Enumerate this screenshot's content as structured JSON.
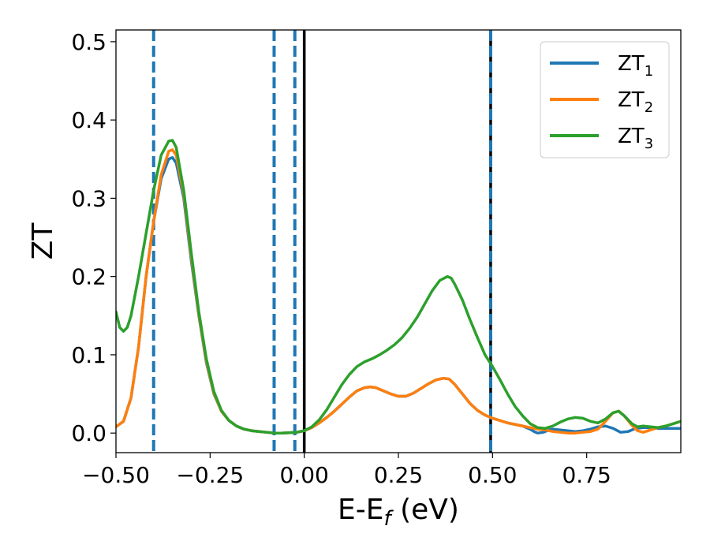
{
  "chart_data": {
    "type": "line",
    "title": "",
    "xlabel_main": "E-E",
    "xlabel_sub": "f",
    "xlabel_unit": " (eV)",
    "ylabel": "ZT",
    "xlim": [
      -0.5,
      1.0
    ],
    "ylim": [
      -0.025,
      0.515
    ],
    "grid": false,
    "legend_placement": "top-right",
    "x_ticks": [
      -0.5,
      -0.25,
      0.0,
      0.25,
      0.5,
      0.75
    ],
    "x_tick_labels": [
      "−0.50",
      "−0.25",
      "0.00",
      "0.25",
      "0.50",
      "0.75"
    ],
    "y_ticks": [
      0.0,
      0.1,
      0.2,
      0.3,
      0.4,
      0.5
    ],
    "y_tick_labels": [
      "0.0",
      "0.1",
      "0.2",
      "0.3",
      "0.4",
      "0.5"
    ],
    "vlines": [
      {
        "x": -0.4,
        "style": "dashed",
        "color": "#1f77b4"
      },
      {
        "x": -0.08,
        "style": "dashed",
        "color": "#1f77b4"
      },
      {
        "x": -0.025,
        "style": "dashed",
        "color": "#1f77b4"
      },
      {
        "x": 0.0,
        "style": "solid",
        "color": "#000000"
      },
      {
        "x": 0.495,
        "style": "solid",
        "color": "#000000"
      },
      {
        "x": 0.495,
        "style": "dashed",
        "color": "#1f77b4"
      }
    ],
    "series": [
      {
        "name": "ZT",
        "sub": "1",
        "color": "#1f77b4",
        "points": [
          [
            -0.5,
            0.008
          ],
          [
            -0.48,
            0.015
          ],
          [
            -0.46,
            0.045
          ],
          [
            -0.44,
            0.11
          ],
          [
            -0.42,
            0.2
          ],
          [
            -0.4,
            0.27
          ],
          [
            -0.38,
            0.325
          ],
          [
            -0.36,
            0.35
          ],
          [
            -0.35,
            0.352
          ],
          [
            -0.34,
            0.345
          ],
          [
            -0.32,
            0.3
          ],
          [
            -0.3,
            0.22
          ],
          [
            -0.28,
            0.15
          ],
          [
            -0.26,
            0.09
          ],
          [
            -0.24,
            0.05
          ],
          [
            -0.22,
            0.028
          ],
          [
            -0.2,
            0.016
          ],
          [
            -0.18,
            0.009
          ],
          [
            -0.16,
            0.005
          ],
          [
            -0.14,
            0.003
          ],
          [
            -0.12,
            0.002
          ],
          [
            -0.1,
            0.001
          ],
          [
            -0.08,
            0.0
          ],
          [
            -0.06,
            0.0
          ],
          [
            -0.04,
            0.0005
          ],
          [
            -0.02,
            0.001
          ],
          [
            0.0,
            0.003
          ],
          [
            0.02,
            0.007
          ],
          [
            0.04,
            0.013
          ],
          [
            0.06,
            0.02
          ],
          [
            0.08,
            0.028
          ],
          [
            0.1,
            0.037
          ],
          [
            0.12,
            0.046
          ],
          [
            0.14,
            0.054
          ],
          [
            0.16,
            0.058
          ],
          [
            0.175,
            0.059
          ],
          [
            0.19,
            0.058
          ],
          [
            0.21,
            0.054
          ],
          [
            0.23,
            0.05
          ],
          [
            0.25,
            0.047
          ],
          [
            0.27,
            0.047
          ],
          [
            0.29,
            0.051
          ],
          [
            0.31,
            0.057
          ],
          [
            0.33,
            0.063
          ],
          [
            0.35,
            0.068
          ],
          [
            0.37,
            0.07
          ],
          [
            0.385,
            0.069
          ],
          [
            0.4,
            0.062
          ],
          [
            0.42,
            0.05
          ],
          [
            0.44,
            0.038
          ],
          [
            0.46,
            0.029
          ],
          [
            0.48,
            0.023
          ],
          [
            0.5,
            0.019
          ],
          [
            0.52,
            0.016
          ],
          [
            0.54,
            0.013
          ],
          [
            0.56,
            0.011
          ],
          [
            0.58,
            0.009
          ],
          [
            0.6,
            0.005
          ],
          [
            0.61,
            0.002
          ],
          [
            0.62,
            0.0
          ],
          [
            0.635,
            0.001
          ],
          [
            0.65,
            0.004
          ],
          [
            0.66,
            0.005
          ],
          [
            0.68,
            0.004
          ],
          [
            0.7,
            0.003
          ],
          [
            0.72,
            0.002
          ],
          [
            0.74,
            0.003
          ],
          [
            0.76,
            0.005
          ],
          [
            0.78,
            0.008
          ],
          [
            0.8,
            0.009
          ],
          [
            0.82,
            0.006
          ],
          [
            0.84,
            0.001
          ],
          [
            0.86,
            0.002
          ],
          [
            0.88,
            0.006
          ],
          [
            0.9,
            0.007
          ],
          [
            0.92,
            0.007
          ],
          [
            0.94,
            0.006
          ],
          [
            0.96,
            0.006
          ],
          [
            0.98,
            0.006
          ],
          [
            1.0,
            0.006
          ]
        ]
      },
      {
        "name": "ZT",
        "sub": "2",
        "color": "#ff7f0e",
        "points": [
          [
            -0.5,
            0.008
          ],
          [
            -0.48,
            0.015
          ],
          [
            -0.46,
            0.045
          ],
          [
            -0.44,
            0.11
          ],
          [
            -0.42,
            0.2
          ],
          [
            -0.4,
            0.27
          ],
          [
            -0.38,
            0.33
          ],
          [
            -0.36,
            0.36
          ],
          [
            -0.35,
            0.362
          ],
          [
            -0.34,
            0.355
          ],
          [
            -0.32,
            0.305
          ],
          [
            -0.3,
            0.225
          ],
          [
            -0.28,
            0.152
          ],
          [
            -0.26,
            0.092
          ],
          [
            -0.24,
            0.051
          ],
          [
            -0.22,
            0.028
          ],
          [
            -0.2,
            0.016
          ],
          [
            -0.18,
            0.009
          ],
          [
            -0.16,
            0.005
          ],
          [
            -0.14,
            0.003
          ],
          [
            -0.12,
            0.002
          ],
          [
            -0.1,
            0.001
          ],
          [
            -0.08,
            0.0
          ],
          [
            -0.06,
            0.0
          ],
          [
            -0.04,
            0.0005
          ],
          [
            -0.02,
            0.001
          ],
          [
            0.0,
            0.003
          ],
          [
            0.02,
            0.007
          ],
          [
            0.04,
            0.013
          ],
          [
            0.06,
            0.02
          ],
          [
            0.08,
            0.028
          ],
          [
            0.1,
            0.037
          ],
          [
            0.12,
            0.046
          ],
          [
            0.14,
            0.054
          ],
          [
            0.16,
            0.058
          ],
          [
            0.175,
            0.059
          ],
          [
            0.19,
            0.058
          ],
          [
            0.21,
            0.054
          ],
          [
            0.23,
            0.05
          ],
          [
            0.25,
            0.047
          ],
          [
            0.27,
            0.047
          ],
          [
            0.29,
            0.051
          ],
          [
            0.31,
            0.057
          ],
          [
            0.33,
            0.063
          ],
          [
            0.35,
            0.068
          ],
          [
            0.37,
            0.07
          ],
          [
            0.385,
            0.069
          ],
          [
            0.4,
            0.062
          ],
          [
            0.42,
            0.05
          ],
          [
            0.44,
            0.038
          ],
          [
            0.46,
            0.029
          ],
          [
            0.48,
            0.023
          ],
          [
            0.5,
            0.019
          ],
          [
            0.52,
            0.016
          ],
          [
            0.54,
            0.013
          ],
          [
            0.56,
            0.011
          ],
          [
            0.58,
            0.009
          ],
          [
            0.6,
            0.007
          ],
          [
            0.62,
            0.005
          ],
          [
            0.64,
            0.004
          ],
          [
            0.66,
            0.002
          ],
          [
            0.68,
            0.001
          ],
          [
            0.7,
            0.0
          ],
          [
            0.72,
            0.0
          ],
          [
            0.74,
            0.001
          ],
          [
            0.76,
            0.002
          ],
          [
            0.78,
            0.005
          ],
          [
            0.8,
            0.015
          ],
          [
            0.82,
            0.026
          ],
          [
            0.835,
            0.028
          ],
          [
            0.85,
            0.022
          ],
          [
            0.87,
            0.01
          ],
          [
            0.885,
            0.003
          ],
          [
            0.9,
            0.001
          ],
          [
            0.92,
            0.004
          ],
          [
            0.94,
            0.007
          ],
          [
            0.96,
            0.009
          ],
          [
            0.98,
            0.012
          ],
          [
            1.0,
            0.015
          ]
        ]
      },
      {
        "name": "ZT",
        "sub": "3",
        "color": "#2ca02c",
        "points": [
          [
            -0.5,
            0.155
          ],
          [
            -0.49,
            0.135
          ],
          [
            -0.48,
            0.13
          ],
          [
            -0.47,
            0.135
          ],
          [
            -0.46,
            0.15
          ],
          [
            -0.44,
            0.2
          ],
          [
            -0.42,
            0.255
          ],
          [
            -0.4,
            0.31
          ],
          [
            -0.38,
            0.355
          ],
          [
            -0.36,
            0.373
          ],
          [
            -0.35,
            0.374
          ],
          [
            -0.34,
            0.365
          ],
          [
            -0.32,
            0.31
          ],
          [
            -0.3,
            0.23
          ],
          [
            -0.28,
            0.155
          ],
          [
            -0.26,
            0.095
          ],
          [
            -0.24,
            0.053
          ],
          [
            -0.22,
            0.029
          ],
          [
            -0.2,
            0.016
          ],
          [
            -0.18,
            0.009
          ],
          [
            -0.16,
            0.005
          ],
          [
            -0.14,
            0.003
          ],
          [
            -0.12,
            0.002
          ],
          [
            -0.1,
            0.001
          ],
          [
            -0.08,
            0.0
          ],
          [
            -0.06,
            0.0
          ],
          [
            -0.04,
            0.0005
          ],
          [
            -0.02,
            0.001
          ],
          [
            0.0,
            0.003
          ],
          [
            0.02,
            0.008
          ],
          [
            0.04,
            0.017
          ],
          [
            0.06,
            0.03
          ],
          [
            0.08,
            0.046
          ],
          [
            0.1,
            0.062
          ],
          [
            0.12,
            0.075
          ],
          [
            0.14,
            0.085
          ],
          [
            0.16,
            0.091
          ],
          [
            0.18,
            0.095
          ],
          [
            0.2,
            0.1
          ],
          [
            0.22,
            0.106
          ],
          [
            0.24,
            0.113
          ],
          [
            0.26,
            0.122
          ],
          [
            0.28,
            0.134
          ],
          [
            0.3,
            0.148
          ],
          [
            0.32,
            0.165
          ],
          [
            0.34,
            0.182
          ],
          [
            0.36,
            0.195
          ],
          [
            0.38,
            0.2
          ],
          [
            0.39,
            0.198
          ],
          [
            0.4,
            0.19
          ],
          [
            0.42,
            0.17
          ],
          [
            0.44,
            0.145
          ],
          [
            0.46,
            0.122
          ],
          [
            0.48,
            0.1
          ],
          [
            0.5,
            0.085
          ],
          [
            0.52,
            0.068
          ],
          [
            0.54,
            0.05
          ],
          [
            0.56,
            0.034
          ],
          [
            0.58,
            0.022
          ],
          [
            0.6,
            0.012
          ],
          [
            0.62,
            0.007
          ],
          [
            0.64,
            0.006
          ],
          [
            0.66,
            0.009
          ],
          [
            0.68,
            0.014
          ],
          [
            0.7,
            0.018
          ],
          [
            0.72,
            0.02
          ],
          [
            0.74,
            0.019
          ],
          [
            0.76,
            0.015
          ],
          [
            0.78,
            0.013
          ],
          [
            0.8,
            0.018
          ],
          [
            0.82,
            0.026
          ],
          [
            0.835,
            0.028
          ],
          [
            0.85,
            0.022
          ],
          [
            0.87,
            0.012
          ],
          [
            0.885,
            0.008
          ],
          [
            0.9,
            0.009
          ],
          [
            0.92,
            0.008
          ],
          [
            0.94,
            0.007
          ],
          [
            0.96,
            0.009
          ],
          [
            0.98,
            0.012
          ],
          [
            1.0,
            0.015
          ]
        ]
      }
    ]
  }
}
